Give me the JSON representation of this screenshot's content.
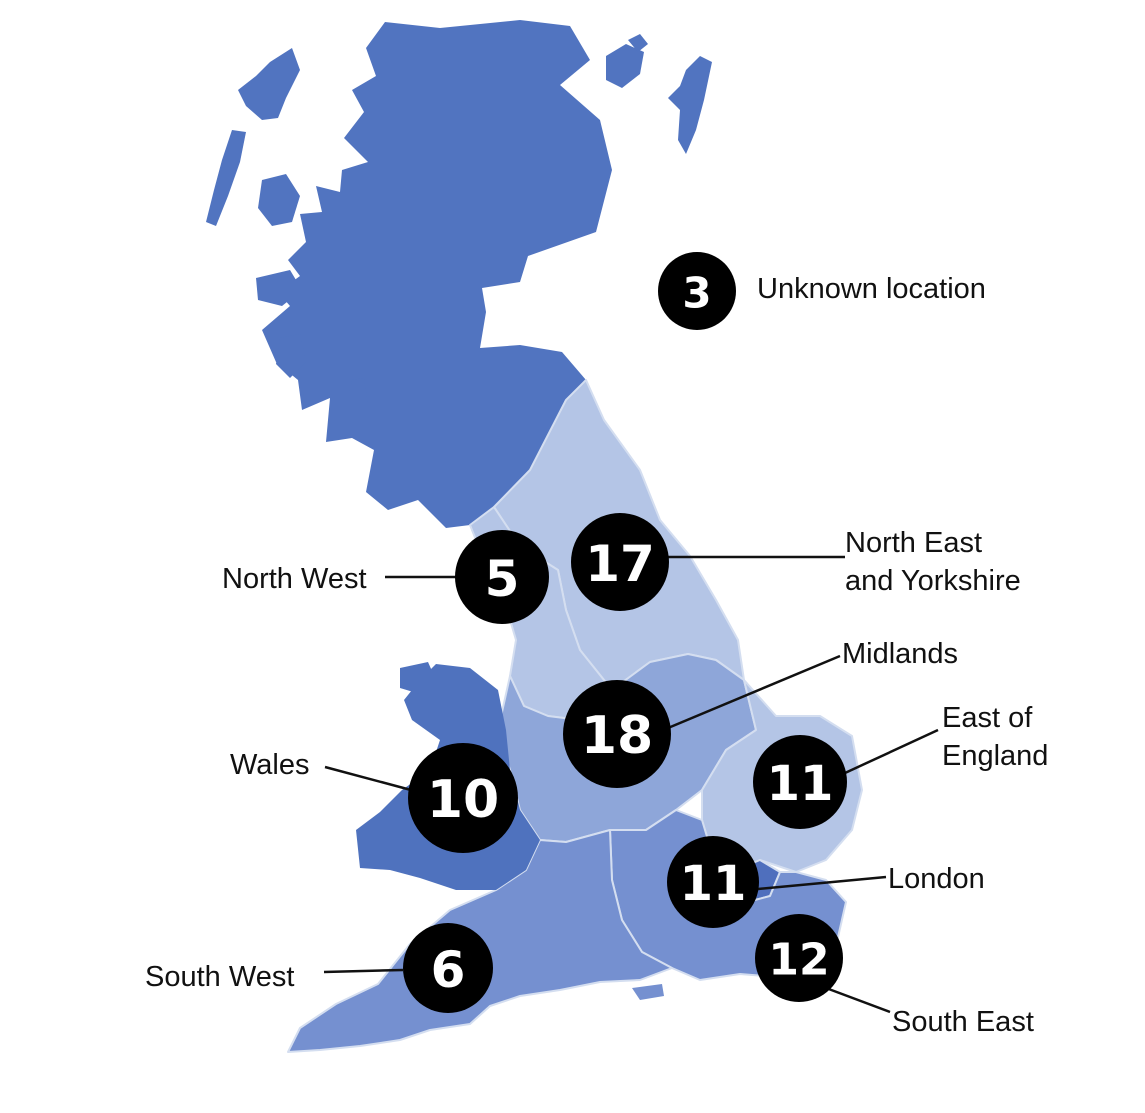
{
  "colors": {
    "scotland_fill": "#5174c0",
    "wales_fill": "#4f72be",
    "region_pale": "#b4c5e6",
    "region_mid": "#8ea6d9",
    "region_medium": "#7590d0",
    "region_dark": "#4f6fbd",
    "region_border": "#d4def0",
    "marker_fill": "#000000",
    "marker_text": "#ffffff",
    "label_text": "#111111"
  },
  "map": {
    "regions": [
      {
        "name": "Scotland"
      },
      {
        "name": "North East and Yorkshire"
      },
      {
        "name": "North West"
      },
      {
        "name": "Midlands"
      },
      {
        "name": "East of England"
      },
      {
        "name": "Wales"
      },
      {
        "name": "London"
      },
      {
        "name": "South East"
      },
      {
        "name": "South West"
      }
    ]
  },
  "markers": {
    "unknown": {
      "count": "3",
      "label": "Unknown location"
    },
    "north_west": {
      "count": "5",
      "label": "North West"
    },
    "north_east": {
      "count": "17",
      "label_line1": "North East",
      "label_line2": "and Yorkshire"
    },
    "midlands": {
      "count": "18",
      "label": "Midlands"
    },
    "east_of_england": {
      "count": "11",
      "label_line1": "East of",
      "label_line2": "England"
    },
    "wales": {
      "count": "10",
      "label": "Wales"
    },
    "london": {
      "count": "11",
      "label": "London"
    },
    "south_east": {
      "count": "12",
      "label": "South East"
    },
    "south_west": {
      "count": "6",
      "label": "South West"
    }
  }
}
